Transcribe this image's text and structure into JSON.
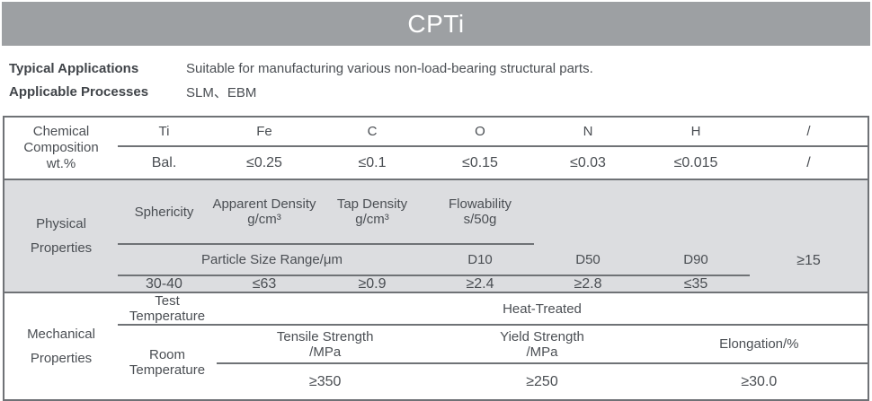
{
  "title_bar": {
    "title": "CPTi"
  },
  "intro": {
    "rows": [
      {
        "label": "Typical Applications",
        "value": "Suitable for manufacturing various non-load-bearing structural parts."
      },
      {
        "label": "Applicable Processes",
        "value": "SLM、EBM"
      }
    ]
  },
  "chemical": {
    "row_label": {
      "line1": "Chemical",
      "line2": "Composition",
      "line3": "wt.%"
    },
    "columns": [
      "Ti",
      "Fe",
      "C",
      "O",
      "N",
      "H",
      "/"
    ],
    "values": [
      "Bal.",
      "≤0.25",
      "≤0.1",
      "≤0.15",
      "≤0.03",
      "≤0.015",
      "/"
    ]
  },
  "physical": {
    "row_label": {
      "line1": "Physical",
      "line2": "Properties"
    },
    "particle_size_header": "Particle Size Range/μm",
    "particle_columns": [
      "D10",
      "D50",
      "D90"
    ],
    "particle_values": [
      "≥15",
      "30-40",
      "≤63"
    ],
    "other_columns": [
      {
        "line1": "Sphericity",
        "line2": ""
      },
      {
        "line1": "Apparent Density",
        "line2": "g/cm³"
      },
      {
        "line1": "Tap Density",
        "line2": "g/cm³"
      },
      {
        "line1": "Flowability",
        "line2": "s/50g"
      }
    ],
    "other_values": [
      "≥0.9",
      "≥2.4",
      "≥2.8",
      "≤35"
    ]
  },
  "mechanical": {
    "row_label": {
      "line1": "Mechanical",
      "line2": "Properties"
    },
    "test_temp": {
      "line1": "Test",
      "line2": "Temperature"
    },
    "condition": "Heat-Treated",
    "room_temp": {
      "line1": "Room",
      "line2": "Temperature"
    },
    "headers": [
      {
        "line1": "Tensile Strength",
        "line2": "/MPa"
      },
      {
        "line1": "Yield Strength",
        "line2": "/MPa"
      },
      {
        "line1": "Elongation/%",
        "line2": ""
      }
    ],
    "values": [
      "≥350",
      "≥250",
      "≥30.0"
    ]
  },
  "colors": {
    "title_bar_bg": "#9da0a3",
    "title_text": "#ffffff",
    "physical_section_bg": "#dcdde0",
    "table_line": "#6f7276",
    "body_text": "#4a4e53"
  }
}
